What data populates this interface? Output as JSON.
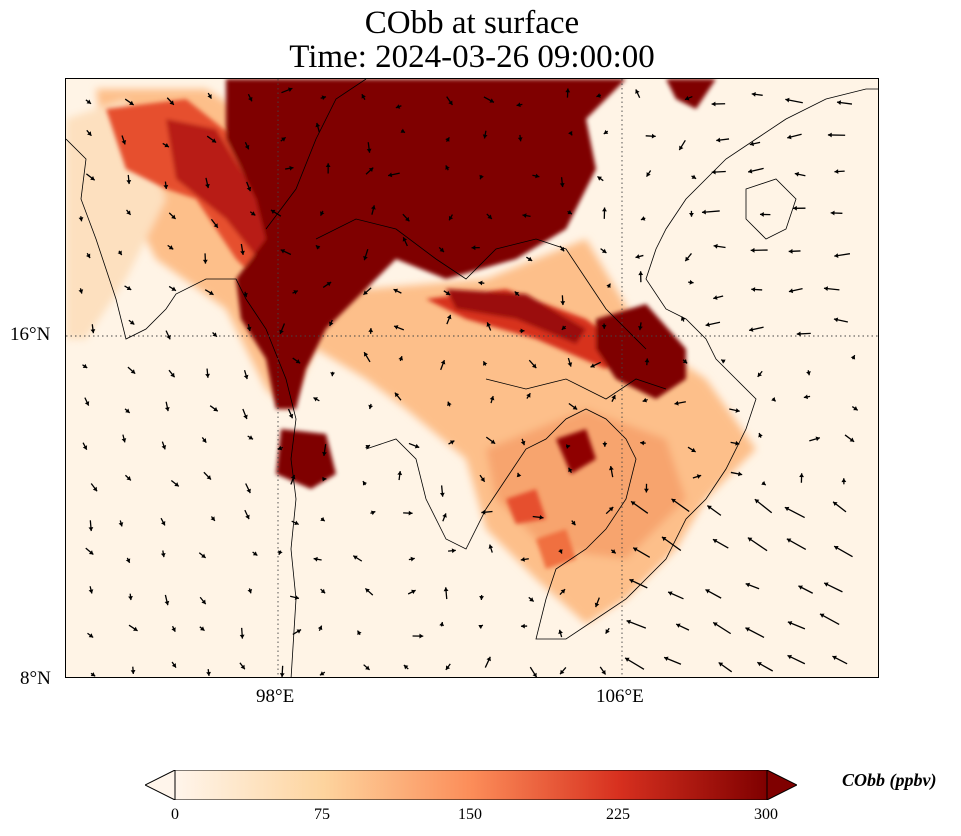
{
  "title": {
    "line1": "CObb at surface",
    "line2": "Time: 2024-03-26 09:00:00"
  },
  "map": {
    "longitude_labels": [
      "98°E",
      "106°E"
    ],
    "latitude_labels": [
      "16°N",
      "8°N"
    ],
    "gridlines": "dotted",
    "feature_description": "surface CO from biomass burning concentration field with wind vectors and country/coastline outlines"
  },
  "colorbar": {
    "title": "CObb (ppbv)",
    "ticks": [
      "0",
      "75",
      "150",
      "225",
      "300"
    ],
    "min": 0,
    "max": 300,
    "extend": "both",
    "colors": [
      "#fff5eb",
      "#fdd49e",
      "#fc8d59",
      "#d7301f",
      "#7f0000"
    ]
  },
  "colors": {
    "background": "#fff4e6",
    "low": "#fff5eb",
    "mid": "#fc8d59",
    "high": "#7f0000"
  }
}
